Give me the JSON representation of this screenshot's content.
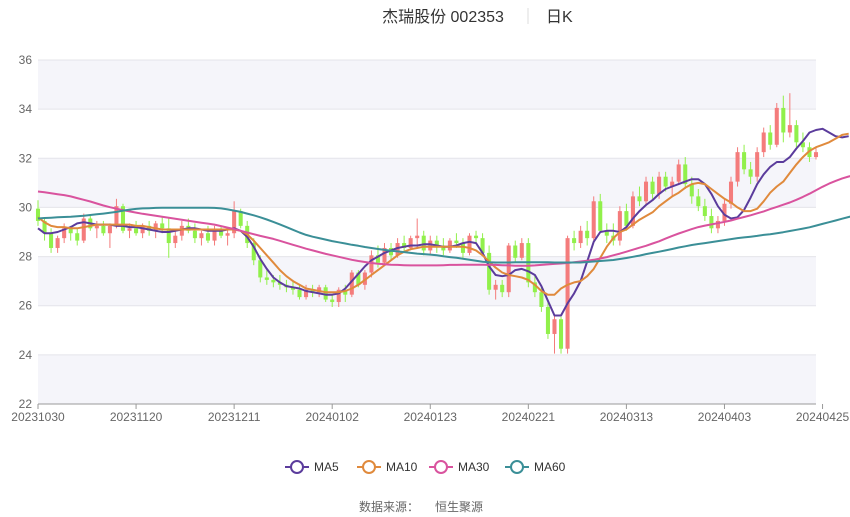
{
  "chart_data": {
    "type": "candlestick",
    "title": "杰瑞股份 002353",
    "subtitle": "日K",
    "source_label": "数据来源：",
    "source_name": "恒生聚源",
    "ylim": [
      22,
      36
    ],
    "yticks": [
      22,
      24,
      26,
      28,
      30,
      32,
      34,
      36
    ],
    "x_tick_labels": [
      "20231030",
      "20231120",
      "20231211",
      "20240102",
      "20240123",
      "20240221",
      "20240313",
      "20240403",
      "20240425"
    ],
    "x_tick_index": [
      0,
      15,
      30,
      45,
      60,
      75,
      90,
      105,
      120
    ],
    "grid": true,
    "legend_position": "bottom-center",
    "colors": {
      "up": "#f47c7c",
      "down": "#91f04b"
    },
    "candles": [
      [
        29.95,
        30.29,
        29.25,
        29.45
      ],
      [
        29.45,
        29.55,
        28.65,
        28.95
      ],
      [
        28.95,
        29.15,
        28.15,
        28.35
      ],
      [
        28.35,
        28.85,
        28.15,
        28.75
      ],
      [
        28.75,
        29.35,
        28.55,
        29.15
      ],
      [
        29.15,
        29.25,
        28.65,
        28.95
      ],
      [
        28.95,
        29.15,
        28.45,
        28.65
      ],
      [
        28.65,
        29.75,
        28.55,
        29.55
      ],
      [
        29.55,
        29.65,
        29.05,
        29.15
      ],
      [
        29.15,
        29.45,
        28.75,
        29.25
      ],
      [
        29.25,
        29.45,
        28.85,
        28.95
      ],
      [
        28.95,
        29.35,
        28.35,
        29.25
      ],
      [
        29.25,
        30.35,
        29.15,
        30.05
      ],
      [
        30.05,
        30.15,
        28.95,
        29.05
      ],
      [
        29.05,
        29.35,
        28.75,
        29.15
      ],
      [
        29.15,
        29.45,
        28.85,
        28.95
      ],
      [
        28.95,
        29.35,
        28.75,
        29.25
      ],
      [
        29.25,
        29.45,
        28.85,
        29.05
      ],
      [
        29.05,
        29.45,
        28.75,
        29.35
      ],
      [
        29.35,
        29.65,
        28.95,
        29.15
      ],
      [
        29.15,
        29.55,
        27.95,
        28.55
      ],
      [
        28.55,
        29.05,
        28.35,
        28.85
      ],
      [
        28.85,
        29.45,
        28.65,
        29.25
      ],
      [
        29.25,
        29.55,
        28.95,
        29.05
      ],
      [
        29.05,
        29.35,
        28.55,
        28.75
      ],
      [
        28.75,
        29.05,
        28.45,
        28.95
      ],
      [
        28.95,
        29.25,
        28.55,
        28.65
      ],
      [
        28.65,
        29.25,
        28.45,
        29.05
      ],
      [
        29.05,
        29.25,
        28.75,
        28.85
      ],
      [
        28.85,
        29.15,
        28.45,
        28.95
      ],
      [
        28.95,
        30.25,
        28.75,
        29.85
      ],
      [
        29.85,
        29.95,
        29.15,
        29.25
      ],
      [
        29.25,
        29.45,
        28.35,
        28.55
      ],
      [
        28.55,
        28.75,
        27.65,
        27.85
      ],
      [
        27.85,
        28.05,
        26.95,
        27.15
      ],
      [
        27.15,
        27.45,
        26.85,
        27.05
      ],
      [
        27.05,
        27.25,
        26.75,
        26.95
      ],
      [
        26.95,
        27.25,
        26.65,
        26.85
      ],
      [
        26.85,
        27.05,
        26.55,
        26.75
      ],
      [
        26.75,
        27.05,
        26.45,
        26.65
      ],
      [
        26.65,
        26.85,
        26.25,
        26.35
      ],
      [
        26.35,
        26.85,
        26.25,
        26.65
      ],
      [
        26.65,
        26.85,
        26.35,
        26.55
      ],
      [
        26.55,
        26.85,
        26.35,
        26.75
      ],
      [
        26.75,
        26.85,
        26.15,
        26.25
      ],
      [
        26.25,
        26.45,
        25.95,
        26.15
      ],
      [
        26.15,
        26.75,
        25.95,
        26.65
      ],
      [
        26.65,
        26.85,
        26.15,
        26.45
      ],
      [
        26.45,
        27.45,
        26.35,
        27.35
      ],
      [
        27.35,
        27.45,
        26.75,
        26.85
      ],
      [
        26.85,
        27.45,
        26.65,
        27.35
      ],
      [
        27.35,
        28.25,
        27.15,
        28.05
      ],
      [
        28.05,
        28.45,
        27.55,
        27.75
      ],
      [
        27.75,
        28.55,
        27.65,
        28.35
      ],
      [
        28.35,
        28.55,
        27.85,
        28.05
      ],
      [
        28.05,
        28.75,
        27.95,
        28.55
      ],
      [
        28.55,
        28.85,
        28.15,
        28.35
      ],
      [
        28.35,
        28.85,
        28.25,
        28.75
      ],
      [
        28.75,
        29.55,
        28.35,
        28.85
      ],
      [
        28.85,
        29.05,
        28.05,
        28.25
      ],
      [
        28.25,
        28.85,
        28.05,
        28.65
      ],
      [
        28.65,
        28.85,
        28.15,
        28.45
      ],
      [
        28.45,
        28.75,
        28.05,
        28.25
      ],
      [
        28.25,
        28.75,
        28.15,
        28.65
      ],
      [
        28.65,
        28.95,
        28.35,
        28.55
      ],
      [
        28.55,
        28.75,
        27.95,
        28.15
      ],
      [
        28.15,
        28.95,
        28.05,
        28.85
      ],
      [
        28.85,
        29.05,
        28.55,
        28.75
      ],
      [
        28.75,
        28.95,
        28.05,
        28.15
      ],
      [
        28.15,
        28.45,
        26.45,
        26.65
      ],
      [
        26.65,
        27.05,
        26.25,
        26.85
      ],
      [
        26.85,
        27.05,
        26.35,
        26.55
      ],
      [
        26.55,
        28.55,
        26.35,
        28.45
      ],
      [
        28.45,
        28.65,
        27.75,
        27.95
      ],
      [
        27.95,
        28.75,
        27.85,
        28.55
      ],
      [
        28.55,
        28.75,
        26.75,
        26.95
      ],
      [
        26.95,
        27.25,
        26.35,
        26.55
      ],
      [
        26.55,
        26.75,
        25.75,
        25.95
      ],
      [
        25.95,
        26.15,
        24.65,
        24.85
      ],
      [
        24.85,
        25.65,
        24.05,
        25.45
      ],
      [
        25.45,
        25.55,
        24.05,
        24.25
      ],
      [
        24.25,
        28.85,
        24.05,
        28.75
      ],
      [
        28.75,
        29.05,
        28.25,
        28.55
      ],
      [
        28.55,
        29.25,
        28.35,
        29.05
      ],
      [
        29.05,
        29.45,
        28.45,
        28.75
      ],
      [
        28.75,
        30.45,
        28.65,
        30.25
      ],
      [
        30.25,
        30.55,
        28.95,
        29.05
      ],
      [
        29.05,
        29.35,
        28.55,
        28.85
      ],
      [
        28.85,
        29.35,
        28.45,
        28.65
      ],
      [
        28.65,
        30.05,
        28.45,
        29.85
      ],
      [
        29.85,
        30.15,
        29.05,
        29.25
      ],
      [
        29.25,
        30.65,
        29.15,
        30.45
      ],
      [
        30.45,
        30.85,
        30.05,
        30.25
      ],
      [
        30.25,
        31.25,
        30.05,
        31.05
      ],
      [
        31.05,
        31.25,
        30.35,
        30.55
      ],
      [
        30.55,
        31.45,
        30.35,
        31.25
      ],
      [
        31.25,
        31.45,
        30.65,
        30.85
      ],
      [
        30.85,
        31.25,
        30.45,
        31.05
      ],
      [
        31.05,
        31.95,
        30.95,
        31.75
      ],
      [
        31.75,
        32.05,
        30.75,
        30.95
      ],
      [
        30.95,
        31.25,
        30.15,
        30.45
      ],
      [
        30.45,
        30.75,
        29.85,
        30.05
      ],
      [
        30.05,
        30.35,
        29.45,
        29.65
      ],
      [
        29.65,
        29.95,
        28.95,
        29.15
      ],
      [
        29.15,
        29.65,
        28.95,
        29.45
      ],
      [
        29.45,
        30.35,
        29.25,
        30.15
      ],
      [
        30.15,
        31.25,
        29.95,
        31.05
      ],
      [
        31.05,
        32.45,
        30.85,
        32.25
      ],
      [
        32.25,
        32.55,
        31.35,
        31.55
      ],
      [
        31.55,
        31.85,
        30.95,
        31.25
      ],
      [
        31.25,
        32.45,
        31.05,
        32.25
      ],
      [
        32.25,
        33.25,
        32.05,
        33.05
      ],
      [
        33.05,
        33.35,
        32.35,
        32.55
      ],
      [
        32.55,
        34.25,
        32.45,
        34.05
      ],
      [
        34.05,
        34.55,
        32.65,
        33.05
      ],
      [
        33.05,
        34.65,
        32.85,
        33.35
      ],
      [
        33.35,
        33.55,
        32.45,
        32.65
      ],
      [
        32.65,
        33.05,
        32.25,
        32.45
      ],
      [
        32.45,
        32.65,
        31.85,
        32.05
      ],
      [
        32.05,
        32.45,
        31.95,
        32.25
      ]
    ],
    "series": [
      {
        "name": "MA5",
        "color": "#5b3c9c",
        "values": [
          29.15,
          28.95,
          28.95,
          29.0,
          29.1,
          29.2,
          29.35,
          29.4,
          29.35,
          29.3,
          29.3,
          29.3,
          29.25,
          29.25,
          29.2,
          29.2,
          29.15,
          29.1,
          29.05,
          29.0,
          29.0,
          29.05,
          29.1,
          29.15,
          29.15,
          29.1,
          29.05,
          29.05,
          29.05,
          29.1,
          29.15,
          29.05,
          28.8,
          28.4,
          27.9,
          27.5,
          27.15,
          26.95,
          26.8,
          26.75,
          26.7,
          26.6,
          26.55,
          26.5,
          26.45,
          26.45,
          26.5,
          26.7,
          27.0,
          27.3,
          27.6,
          27.85,
          28.0,
          28.15,
          28.25,
          28.35,
          28.4,
          28.45,
          28.45,
          28.5,
          28.5,
          28.45,
          28.4,
          28.4,
          28.45,
          28.55,
          28.6,
          28.55,
          28.15,
          27.6,
          27.25,
          27.2,
          27.25,
          27.45,
          27.5,
          27.4,
          27.25,
          26.8,
          26.2,
          25.6,
          25.6,
          26.1,
          26.5,
          27.0,
          27.8,
          28.6,
          29.0,
          29.05,
          29.05,
          29.0,
          29.2,
          29.55,
          29.85,
          30.1,
          30.3,
          30.55,
          30.75,
          30.85,
          30.95,
          31.05,
          31.15,
          31.15,
          30.95,
          30.55,
          30.05,
          29.7,
          29.55,
          29.6,
          29.9,
          30.4,
          30.95,
          31.35,
          31.65,
          31.85,
          31.85,
          32.05,
          32.4,
          32.7,
          33.05,
          33.15,
          33.2,
          33.05,
          32.9,
          32.85,
          32.9
        ]
      },
      {
        "name": "MA10",
        "color": "#e08a3c",
        "values": [
          29.6,
          29.4,
          29.25,
          29.2,
          29.2,
          29.15,
          29.15,
          29.2,
          29.25,
          29.3,
          29.3,
          29.3,
          29.3,
          29.3,
          29.3,
          29.25,
          29.25,
          29.2,
          29.15,
          29.1,
          29.1,
          29.1,
          29.1,
          29.1,
          29.1,
          29.1,
          29.1,
          29.1,
          29.1,
          29.1,
          29.1,
          29.05,
          28.9,
          28.65,
          28.35,
          28.05,
          27.75,
          27.45,
          27.2,
          27.0,
          26.85,
          26.7,
          26.65,
          26.6,
          26.55,
          26.55,
          26.55,
          26.6,
          26.7,
          26.85,
          27.05,
          27.25,
          27.45,
          27.65,
          27.85,
          28.05,
          28.2,
          28.3,
          28.35,
          28.4,
          28.4,
          28.4,
          28.4,
          28.4,
          28.4,
          28.4,
          28.35,
          28.25,
          28.05,
          27.8,
          27.55,
          27.35,
          27.25,
          27.2,
          27.15,
          27.05,
          26.85,
          26.6,
          26.45,
          26.45,
          26.7,
          26.85,
          26.95,
          27.0,
          27.2,
          27.5,
          27.95,
          28.4,
          28.75,
          29.0,
          29.1,
          29.3,
          29.5,
          29.65,
          29.8,
          30.05,
          30.25,
          30.45,
          30.6,
          30.8,
          30.95,
          31.0,
          30.95,
          30.75,
          30.55,
          30.35,
          30.2,
          30.0,
          29.85,
          29.85,
          29.95,
          30.25,
          30.6,
          30.85,
          31.05,
          31.4,
          31.75,
          32.05,
          32.3,
          32.45,
          32.55,
          32.65,
          32.8,
          32.95,
          33.0
        ]
      },
      {
        "name": "MA30",
        "color": "#d9539e",
        "values": [
          30.65,
          30.62,
          30.58,
          30.54,
          30.5,
          30.45,
          30.38,
          30.31,
          30.24,
          30.16,
          30.08,
          30.01,
          29.95,
          29.89,
          29.84,
          29.79,
          29.74,
          29.7,
          29.66,
          29.62,
          29.58,
          29.54,
          29.5,
          29.46,
          29.42,
          29.38,
          29.34,
          29.3,
          29.24,
          29.18,
          29.12,
          29.05,
          28.98,
          28.91,
          28.84,
          28.78,
          28.72,
          28.64,
          28.56,
          28.48,
          28.4,
          28.32,
          28.25,
          28.18,
          28.11,
          28.05,
          27.99,
          27.93,
          27.87,
          27.82,
          27.78,
          27.74,
          27.71,
          27.69,
          27.67,
          27.66,
          27.65,
          27.64,
          27.64,
          27.64,
          27.64,
          27.64,
          27.65,
          27.66,
          27.66,
          27.67,
          27.67,
          27.67,
          27.67,
          27.66,
          27.66,
          27.65,
          27.64,
          27.63,
          27.63,
          27.63,
          27.64,
          27.66,
          27.68,
          27.7,
          27.72,
          27.74,
          27.77,
          27.8,
          27.83,
          27.87,
          27.92,
          27.98,
          28.05,
          28.12,
          28.2,
          28.28,
          28.36,
          28.44,
          28.53,
          28.62,
          28.73,
          28.84,
          28.94,
          29.03,
          29.12,
          29.2,
          29.26,
          29.31,
          29.36,
          29.41,
          29.47,
          29.54,
          29.61,
          29.68,
          29.76,
          29.84,
          29.93,
          30.02,
          30.11,
          30.2,
          30.31,
          30.43,
          30.56,
          30.7,
          30.84,
          30.97,
          31.08,
          31.18,
          31.26,
          31.32,
          31.37,
          31.43
        ]
      },
      {
        "name": "MA60",
        "color": "#3b8f97",
        "values": [
          29.55,
          29.57,
          29.58,
          29.6,
          29.61,
          29.62,
          29.64,
          29.66,
          29.69,
          29.72,
          29.75,
          29.78,
          29.82,
          29.87,
          29.91,
          29.94,
          29.96,
          29.97,
          29.98,
          29.99,
          29.99,
          29.99,
          29.99,
          29.99,
          29.99,
          29.99,
          29.99,
          29.98,
          29.96,
          29.92,
          29.87,
          29.82,
          29.75,
          29.68,
          29.6,
          29.51,
          29.41,
          29.31,
          29.2,
          29.09,
          28.98,
          28.88,
          28.81,
          28.75,
          28.69,
          28.63,
          28.58,
          28.53,
          28.48,
          28.44,
          28.39,
          28.35,
          28.31,
          28.27,
          28.24,
          28.21,
          28.18,
          28.15,
          28.12,
          28.1,
          28.08,
          28.05,
          28.01,
          27.98,
          27.95,
          27.91,
          27.87,
          27.83,
          27.79,
          27.77,
          27.76,
          27.76,
          27.76,
          27.77,
          27.77,
          27.77,
          27.77,
          27.77,
          27.77,
          27.76,
          27.76,
          27.76,
          27.76,
          27.76,
          27.78,
          27.8,
          27.82,
          27.84,
          27.86,
          27.9,
          27.94,
          27.99,
          28.04,
          28.1,
          28.15,
          28.2,
          28.25,
          28.31,
          28.37,
          28.42,
          28.47,
          28.51,
          28.55,
          28.59,
          28.63,
          28.67,
          28.71,
          28.75,
          28.78,
          28.81,
          28.84,
          28.88,
          28.91,
          28.95,
          28.99,
          29.04,
          29.09,
          29.14,
          29.19,
          29.26,
          29.33,
          29.4,
          29.47,
          29.54,
          29.61,
          29.68,
          29.75,
          29.81,
          29.88,
          29.94,
          30.0
        ]
      }
    ]
  }
}
